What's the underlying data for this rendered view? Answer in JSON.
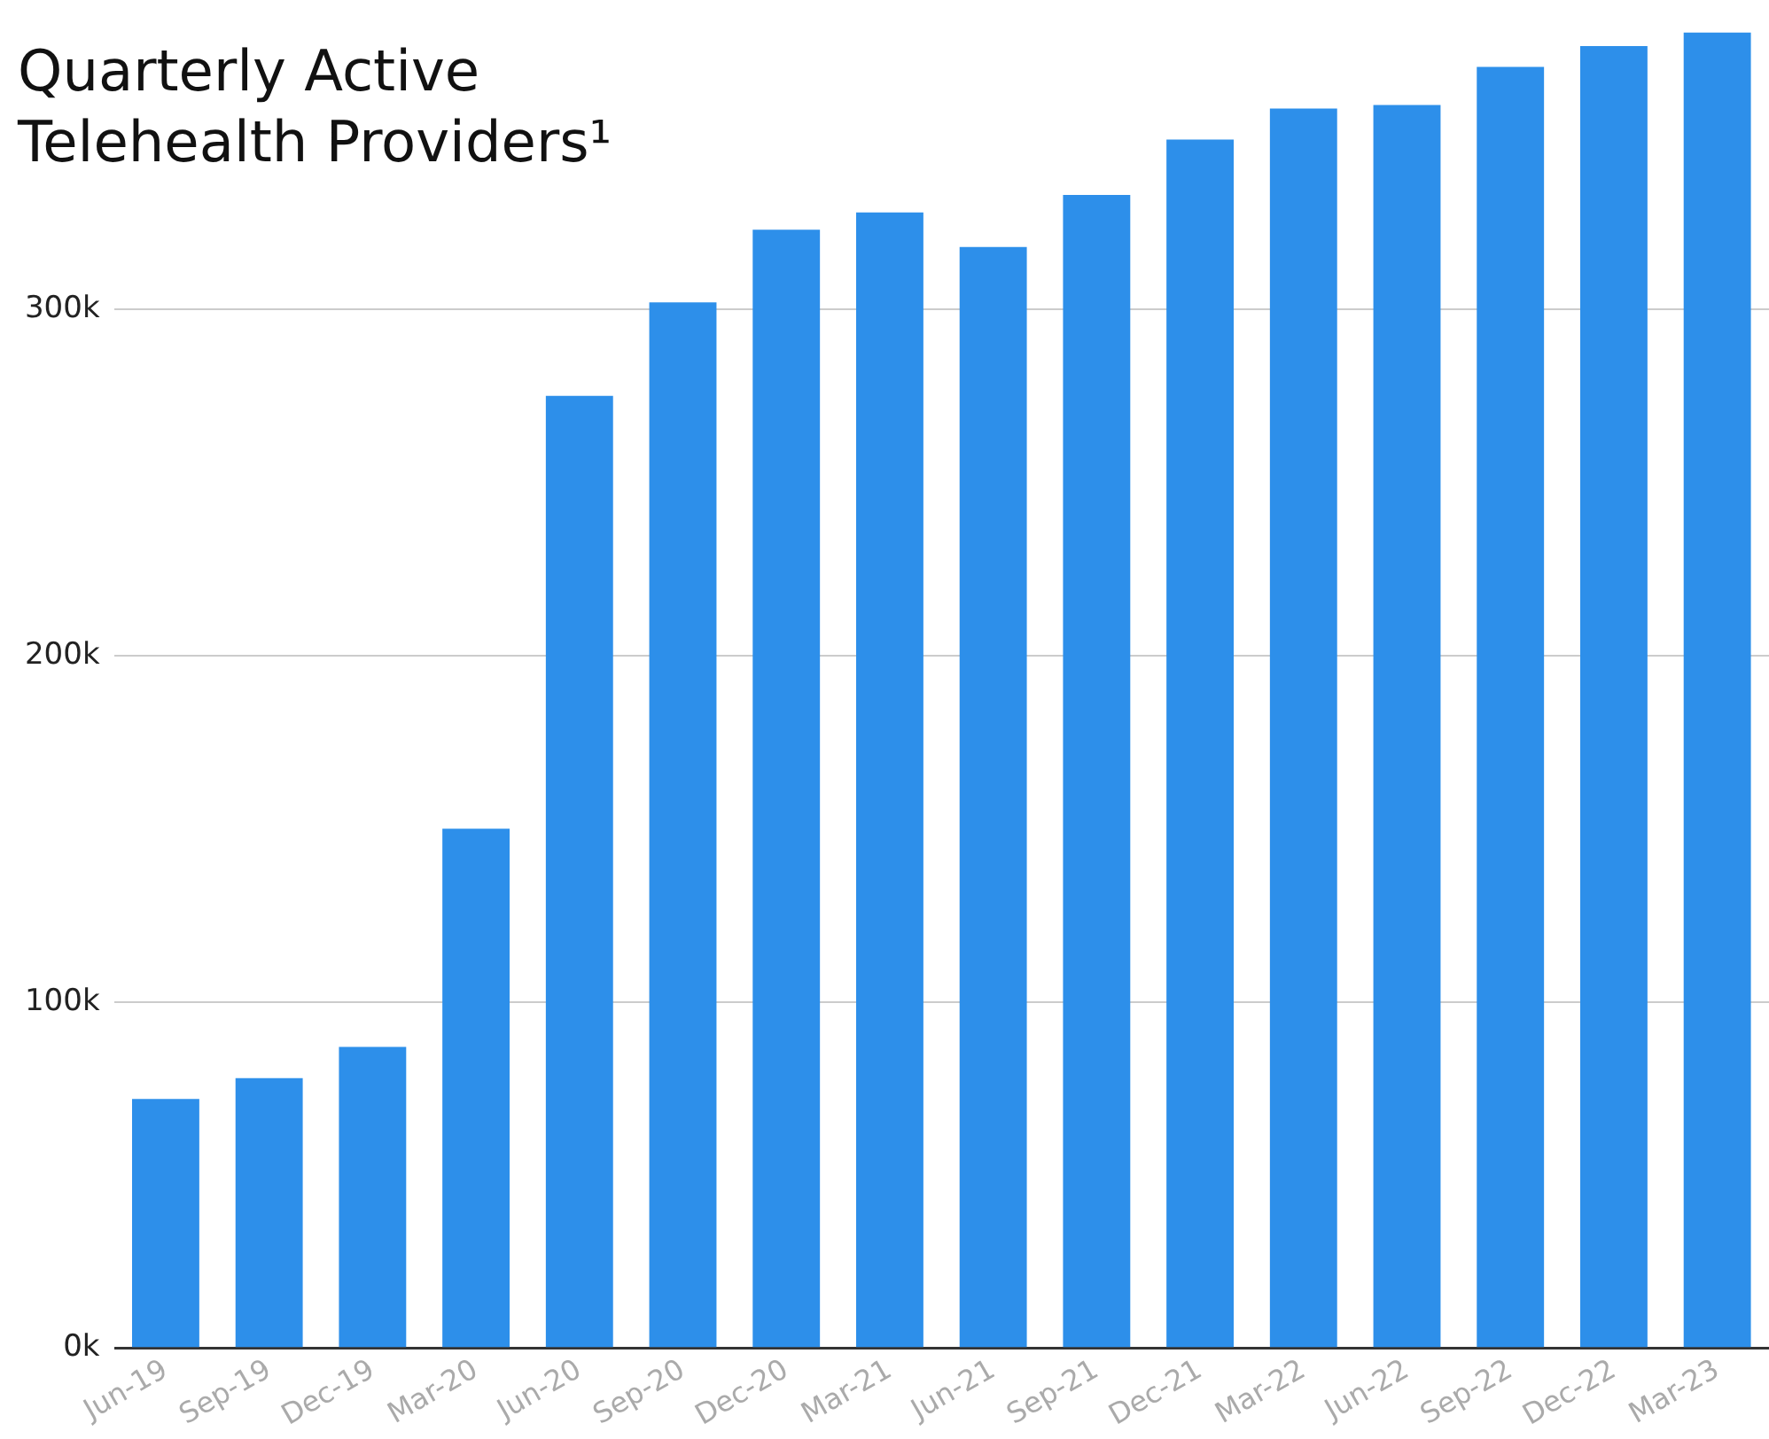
{
  "chart_data": {
    "type": "bar",
    "title": "Quarterly Active Telehealth Providers¹",
    "categories": [
      "Jun-19",
      "Sep-19",
      "Dec-19",
      "Mar-20",
      "Jun-20",
      "Sep-20",
      "Dec-20",
      "Mar-21",
      "Jun-21",
      "Sep-21",
      "Dec-21",
      "Mar-22",
      "Jun-22",
      "Sep-22",
      "Dec-22",
      "Mar-23"
    ],
    "values": [
      72000,
      78000,
      87000,
      150000,
      275000,
      302000,
      323000,
      328000,
      318000,
      333000,
      349000,
      358000,
      359000,
      370000,
      376000,
      380000
    ],
    "color": "#2d8fea",
    "ylim": [
      0,
      380000
    ],
    "yticks": [
      {
        "value": 0,
        "label": "0k"
      },
      {
        "value": 100000,
        "label": "100k"
      },
      {
        "value": 200000,
        "label": "200k"
      },
      {
        "value": 300000,
        "label": "300k"
      }
    ],
    "grid": "y"
  }
}
